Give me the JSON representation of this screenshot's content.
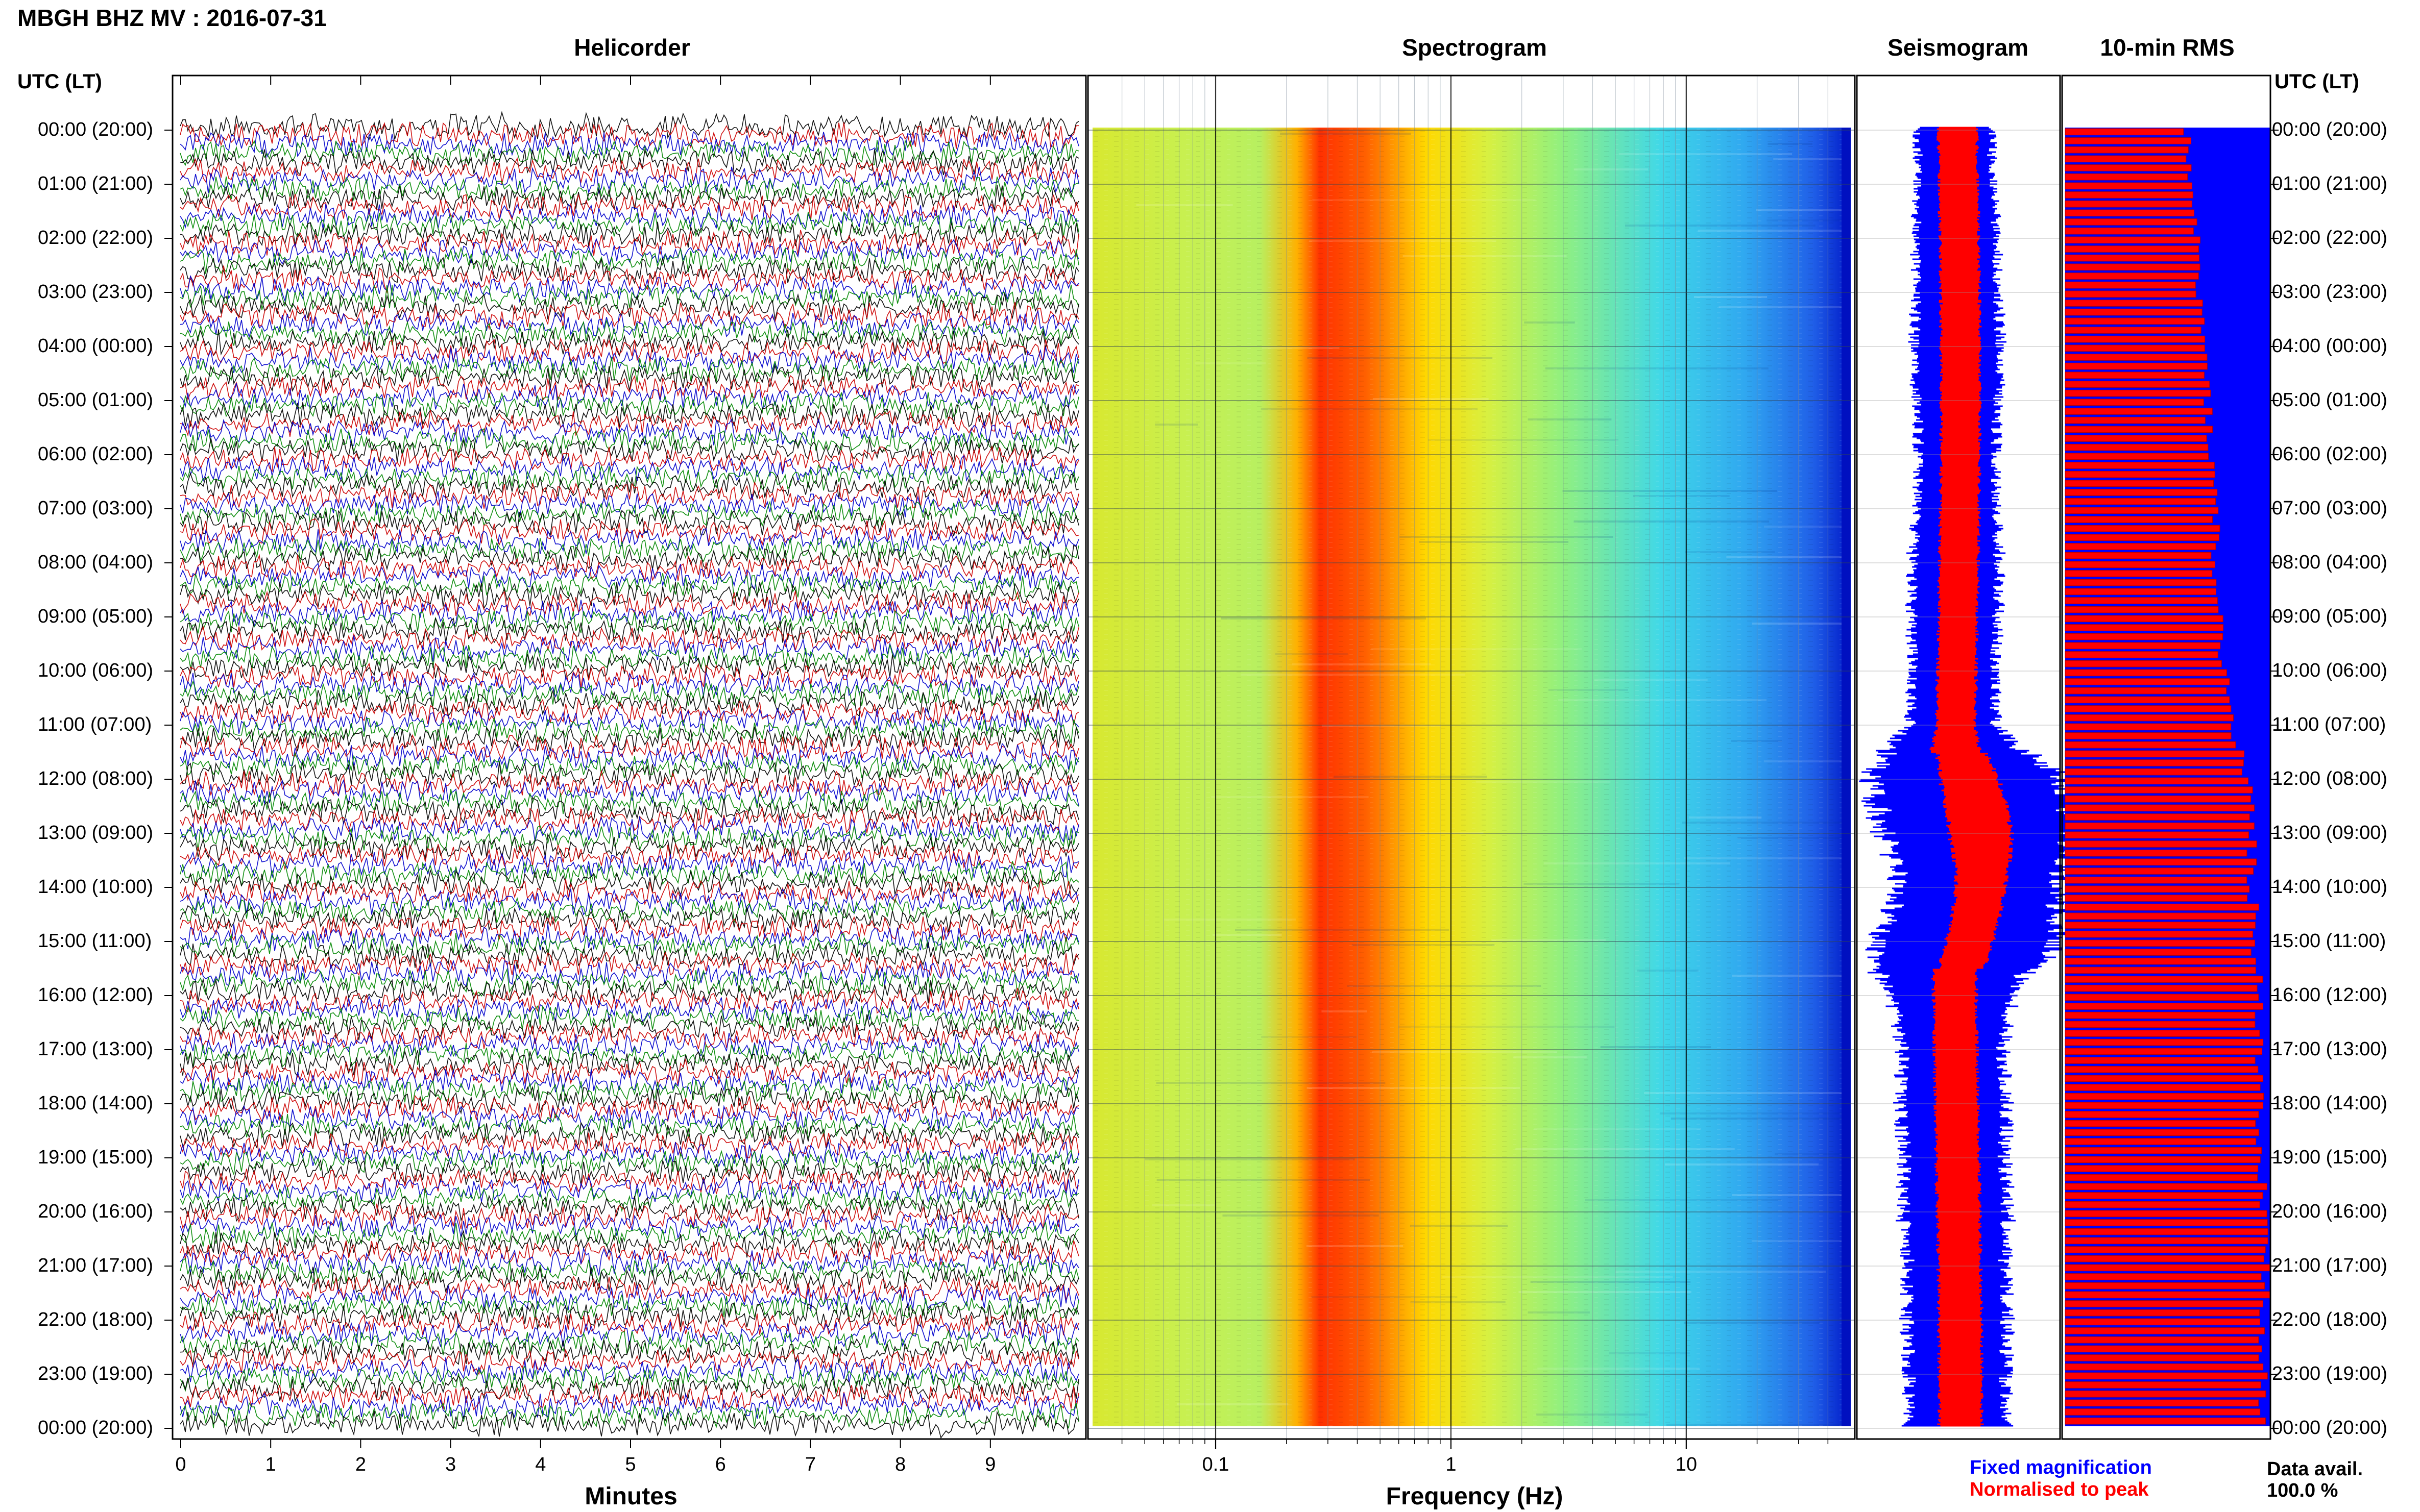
{
  "title": "MBGH BHZ MV : 2016-07-31",
  "panels": {
    "helicorder": "Helicorder",
    "spectrogram": "Spectrogram",
    "seismogram": "Seismogram",
    "rms": "10-min RMS"
  },
  "axis_header_left": "UTC (LT)",
  "axis_header_right": "UTC (LT)",
  "rows": [
    "00:00 (20:00)",
    "01:00 (21:00)",
    "02:00 (22:00)",
    "03:00 (23:00)",
    "04:00 (00:00)",
    "05:00 (01:00)",
    "06:00 (02:00)",
    "07:00 (03:00)",
    "08:00 (04:00)",
    "09:00 (05:00)",
    "10:00 (06:00)",
    "11:00 (07:00)",
    "12:00 (08:00)",
    "13:00 (09:00)",
    "14:00 (10:00)",
    "15:00 (11:00)",
    "16:00 (12:00)",
    "17:00 (13:00)",
    "18:00 (14:00)",
    "19:00 (15:00)",
    "20:00 (16:00)",
    "21:00 (17:00)",
    "22:00 (18:00)",
    "23:00 (19:00)",
    "00:00 (20:00)"
  ],
  "helicorder_xticks": [
    "0",
    "1",
    "2",
    "3",
    "4",
    "5",
    "6",
    "7",
    "8",
    "9"
  ],
  "helicorder_xlabel": "Minutes",
  "spectrogram_xticks": [
    "0.1",
    "1",
    "10"
  ],
  "spectrogram_xlabel": "Frequency (Hz)",
  "legend": {
    "fixed": "Fixed magnification",
    "normalised": "Normalised to peak",
    "fixed_color": "#0000ff",
    "normalised_color": "#ff0000"
  },
  "data_avail_label": "Data avail.",
  "data_avail_value": "100.0 %",
  "trace_colors": [
    "#000000",
    "#cc0000",
    "#0000cc",
    "#008800"
  ],
  "chart_data": [
    {
      "type": "line",
      "panel": "Helicorder",
      "xlabel": "Minutes",
      "xlim": [
        0,
        10
      ],
      "ylabel": "UTC (LT)",
      "lines_per_hour": 6,
      "hours": 24
    },
    {
      "type": "heatmap",
      "panel": "Spectrogram",
      "xlabel": "Frequency (Hz)",
      "xscale": "log",
      "xlim": [
        0.03,
        50
      ],
      "energy_peak_hz": [
        0.2,
        0.5
      ]
    },
    {
      "type": "area",
      "panel": "Seismogram",
      "series": [
        {
          "name": "Fixed magnification",
          "color": "#0000ff",
          "amplitude_by_hour": [
            0.38,
            0.4,
            0.42,
            0.42,
            0.45,
            0.42,
            0.4,
            0.42,
            0.45,
            0.45,
            0.42,
            0.45,
            1.0,
            0.98,
            0.8,
            0.95,
            0.62,
            0.52,
            0.55,
            0.52,
            0.55,
            0.5,
            0.52,
            0.5,
            0.5
          ]
        },
        {
          "name": "Normalised to peak",
          "color": "#ff0000",
          "amplitude_by_hour": [
            0.2,
            0.2,
            0.2,
            0.2,
            0.2,
            0.2,
            0.2,
            0.2,
            0.2,
            0.2,
            0.2,
            0.2,
            0.3,
            0.32,
            0.25,
            0.24,
            0.22,
            0.22,
            0.22,
            0.22,
            0.22,
            0.22,
            0.22,
            0.22,
            0.22
          ]
        }
      ]
    },
    {
      "type": "bar",
      "panel": "10-min RMS",
      "orientation": "horizontal",
      "bins_per_hour": 6,
      "rms_fraction_by_hour": [
        0.6,
        0.62,
        0.65,
        0.66,
        0.68,
        0.7,
        0.72,
        0.74,
        0.74,
        0.76,
        0.78,
        0.82,
        0.9,
        0.92,
        0.92,
        0.94,
        0.96,
        0.96,
        0.96,
        0.97,
        0.97,
        0.98,
        0.98,
        0.98,
        0.98
      ]
    }
  ]
}
